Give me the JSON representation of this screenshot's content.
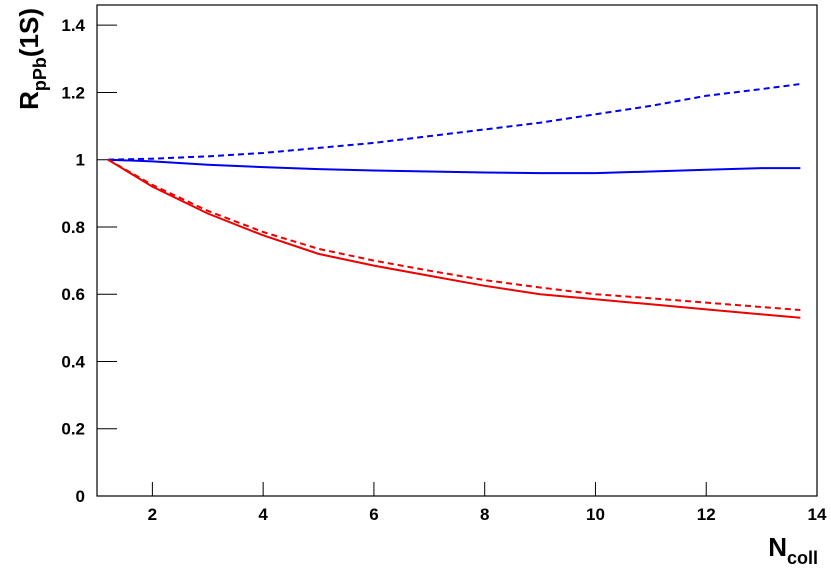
{
  "chart_data": {
    "type": "line",
    "x_label": {
      "main": "N",
      "sub": "coll"
    },
    "y_label": {
      "main": "R",
      "sub": "pPb",
      "suffix": "(1S)"
    },
    "x": [
      1.2,
      2,
      3,
      4,
      5,
      6,
      7,
      8,
      9,
      10,
      11,
      12,
      13,
      13.7
    ],
    "series": [
      {
        "color": "#0000ee",
        "dashed": true,
        "values": [
          1,
          1.003,
          1.01,
          1.02,
          1.035,
          1.05,
          1.07,
          1.09,
          1.11,
          1.135,
          1.16,
          1.19,
          1.21,
          1.225
        ]
      },
      {
        "color": "#0000ee",
        "dashed": false,
        "values": [
          1,
          0.995,
          0.985,
          0.978,
          0.972,
          0.968,
          0.965,
          0.962,
          0.96,
          0.96,
          0.965,
          0.97,
          0.975,
          0.975
        ]
      },
      {
        "color": "#ee0000",
        "dashed": true,
        "values": [
          1,
          0.925,
          0.848,
          0.785,
          0.735,
          0.7,
          0.67,
          0.642,
          0.62,
          0.6,
          0.588,
          0.575,
          0.562,
          0.553
        ]
      },
      {
        "color": "#ee0000",
        "dashed": false,
        "values": [
          1,
          0.92,
          0.84,
          0.775,
          0.72,
          0.685,
          0.655,
          0.625,
          0.6,
          0.585,
          0.57,
          0.555,
          0.54,
          0.53
        ]
      }
    ],
    "xlim": [
      1,
      14
    ],
    "xticks": [
      2,
      4,
      6,
      8,
      10,
      12,
      14
    ],
    "ylim": [
      0,
      1.46
    ],
    "yticks": [
      0,
      0.2,
      0.4,
      0.6,
      0.8,
      1,
      1.2,
      1.4
    ]
  }
}
